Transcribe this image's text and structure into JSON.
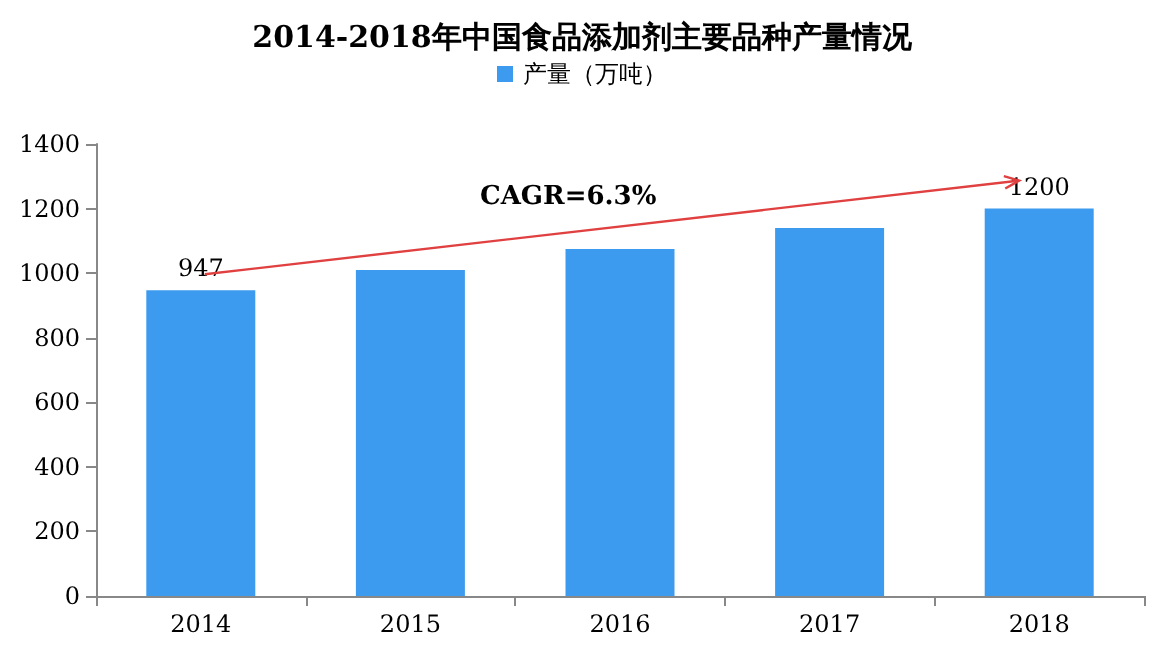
{
  "chart_data": {
    "type": "bar",
    "title": "2014-2018年中国食品添加剂主要品种产量情况",
    "categories": [
      "2014",
      "2015",
      "2016",
      "2017",
      "2018"
    ],
    "series": [
      {
        "name": "产量（万吨）",
        "color": "#3d9bef",
        "values": [
          947,
          1010,
          1075,
          1140,
          1200
        ],
        "value_labels": [
          "947",
          null,
          null,
          null,
          "1200"
        ]
      }
    ],
    "ylim": [
      0,
      1400
    ],
    "yticks": [
      0,
      200,
      400,
      600,
      800,
      1000,
      1200,
      1400
    ],
    "grid": false,
    "legend": "top",
    "annotations": [
      "CAGR=6.3%"
    ]
  }
}
